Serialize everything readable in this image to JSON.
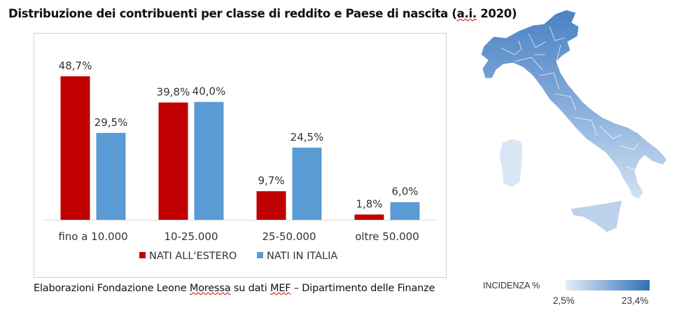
{
  "header": {
    "title_main": "Distribuzione dei contribuenti per classe di reddito e Paese di nascita (",
    "title_ai": "a.i.",
    "title_end": " 2020)"
  },
  "source": {
    "part1": "Elaborazioni Fondazione Leone ",
    "moressa": "Moressa",
    "part2": " su dati ",
    "mef": "MEF",
    "part3": " – Dipartimento delle Finanze"
  },
  "map_legend": {
    "label": "INCIDENZA %",
    "min": "2,5%",
    "max": "23,4%",
    "color_min": "#e6eef8",
    "color_max": "#2f6fb8"
  },
  "chart_data": {
    "type": "bar",
    "title": "Distribuzione dei contribuenti per classe di reddito e Paese di nascita (a.i. 2020)",
    "categories": [
      "fino a 10.000",
      "10-25.000",
      "25-50.000",
      "oltre 50.000"
    ],
    "series": [
      {
        "name": "NATI ALL'ESTERO",
        "color": "#c00000",
        "values": [
          48.7,
          39.8,
          9.7,
          1.8
        ],
        "labels": [
          "48,7%",
          "39,8%",
          "9,7%",
          "1,8%"
        ]
      },
      {
        "name": "NATI IN ITALIA",
        "color": "#5b9bd5",
        "values": [
          29.5,
          40.0,
          24.5,
          6.0
        ],
        "labels": [
          "29,5%",
          "40,0%",
          "24,5%",
          "6,0%"
        ]
      }
    ],
    "ylim": [
      0,
      50
    ],
    "grid": false,
    "legend": "bottom",
    "xlabel": "",
    "ylabel": ""
  }
}
